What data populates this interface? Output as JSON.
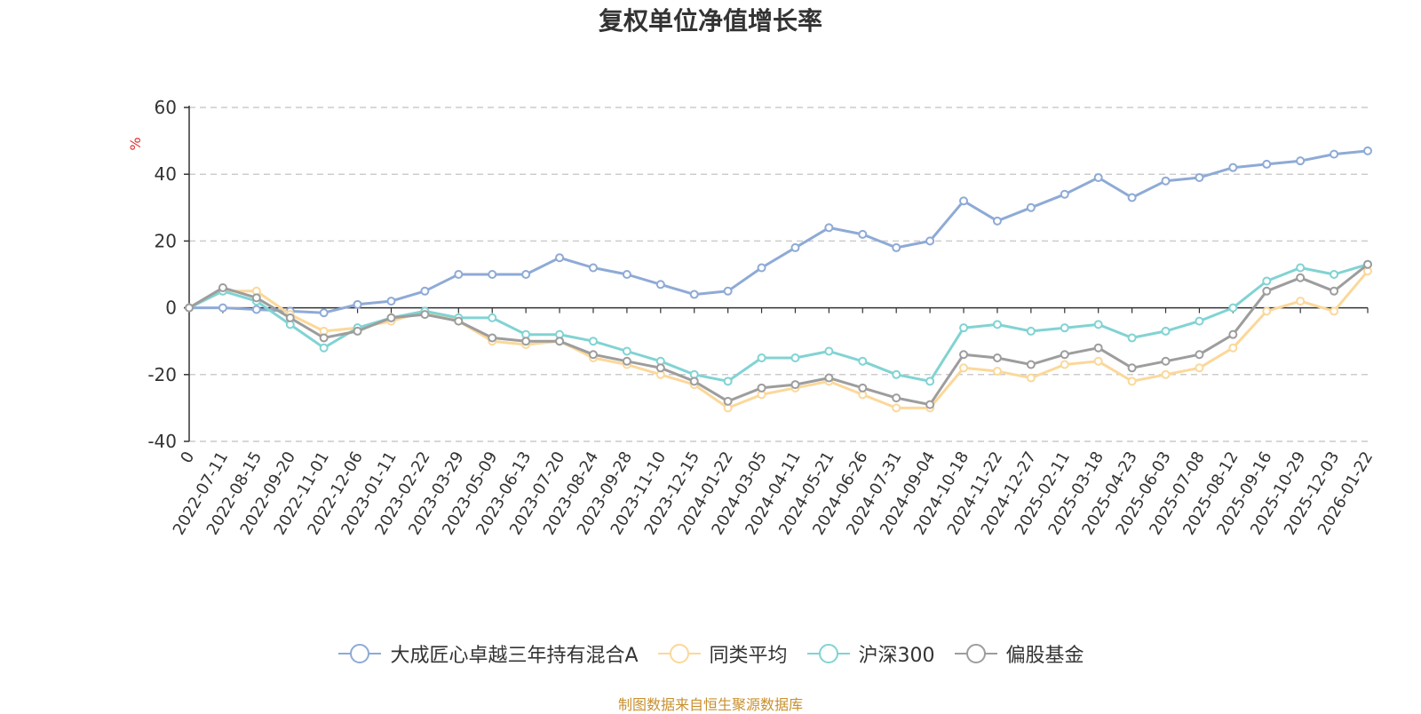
{
  "chart_data": {
    "type": "line",
    "title": "复权单位净值增长率",
    "ylabel": "%",
    "xlabel": "",
    "ylim": [
      -40,
      60
    ],
    "yticks": [
      -40,
      -20,
      0,
      20,
      40,
      60
    ],
    "categories": [
      "0",
      "2022-07-11",
      "2022-08-15",
      "2022-09-20",
      "2022-11-01",
      "2022-12-06",
      "2023-01-11",
      "2023-02-22",
      "2023-03-29",
      "2023-05-09",
      "2023-06-13",
      "2023-07-20",
      "2023-08-24",
      "2023-09-28",
      "2023-11-10",
      "2023-12-15",
      "2024-01-22",
      "2024-03-05",
      "2024-04-11",
      "2024-05-21",
      "2024-06-26",
      "2024-07-31",
      "2024-09-04",
      "2024-10-18",
      "2024-11-22",
      "2024-12-27",
      "2025-02-11",
      "2025-03-18",
      "2025-04-23",
      "2025-06-03",
      "2025-07-08",
      "2025-08-12",
      "2025-09-16",
      "2025-10-29",
      "2025-12-03",
      "2026-01-22"
    ],
    "series": [
      {
        "name": "大成匠心卓越三年持有混合A",
        "color": "#8eaad6",
        "values": [
          0,
          0,
          -0.5,
          -1,
          -1.5,
          1,
          2,
          5,
          10,
          10,
          10,
          15,
          12,
          10,
          7,
          4,
          5,
          12,
          18,
          24,
          22,
          18,
          20,
          32,
          26,
          30,
          34,
          39,
          33,
          38,
          39,
          42,
          43,
          44,
          46,
          47
        ]
      },
      {
        "name": "同类平均",
        "color": "#fbd89a",
        "values": [
          0,
          5,
          5,
          -2,
          -7,
          -6,
          -4,
          -1,
          -4,
          -10,
          -11,
          -10,
          -15,
          -17,
          -20,
          -23,
          -30,
          -26,
          -24,
          -22,
          -26,
          -30,
          -30,
          -18,
          -19,
          -21,
          -17,
          -16,
          -22,
          -20,
          -18,
          -12,
          -1,
          2,
          -1,
          11
        ]
      },
      {
        "name": "沪深300",
        "color": "#81d3d3",
        "values": [
          0,
          5,
          2,
          -5,
          -12,
          -6,
          -3,
          -1,
          -3,
          -3,
          -8,
          -8,
          -10,
          -13,
          -16,
          -20,
          -22,
          -15,
          -15,
          -13,
          -16,
          -20,
          -22,
          -6,
          -5,
          -7,
          -6,
          -5,
          -9,
          -7,
          -4,
          0,
          8,
          12,
          10,
          13
        ]
      },
      {
        "name": "偏股基金",
        "color": "#9d9d9d",
        "values": [
          0,
          6,
          3,
          -3,
          -9,
          -7,
          -3,
          -2,
          -4,
          -9,
          -10,
          -10,
          -14,
          -16,
          -18,
          -22,
          -28,
          -24,
          -23,
          -21,
          -24,
          -27,
          -29,
          -14,
          -15,
          -17,
          -14,
          -12,
          -18,
          -16,
          -14,
          -8,
          5,
          9,
          5,
          13
        ]
      }
    ],
    "legend_position": "bottom",
    "grid": true
  },
  "source_note": "制图数据来自恒生聚源数据库"
}
